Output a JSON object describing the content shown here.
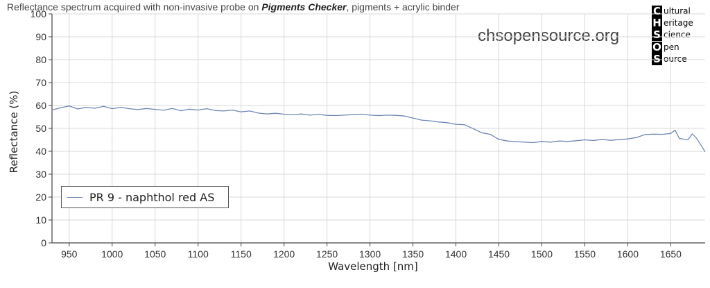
{
  "header": {
    "title_prefix": "Reflectance spectrum acquired with non-invasive probe on ",
    "title_emphasis": "Pigments Checker",
    "title_suffix": ", pigments + acrylic binder",
    "website": "chsopensource.org"
  },
  "logo": {
    "rows": [
      {
        "letter": "C",
        "rest": "ultural"
      },
      {
        "letter": "H",
        "rest": "eritage"
      },
      {
        "letter": "S",
        "rest": "cience"
      },
      {
        "letter": "O",
        "rest": "pen"
      },
      {
        "letter": "S",
        "rest": "ource"
      }
    ]
  },
  "colors": {
    "series": "#6f86b5",
    "grid": "#d9d9d9",
    "axis": "#444444"
  },
  "chart_data": {
    "type": "line",
    "xlabel": "Wavelength [nm]",
    "ylabel": "Reflectance (%)",
    "xlim": [
      930,
      1690
    ],
    "ylim": [
      0,
      100
    ],
    "xticks": [
      950,
      1000,
      1050,
      1100,
      1150,
      1200,
      1250,
      1300,
      1350,
      1400,
      1450,
      1500,
      1550,
      1600,
      1650
    ],
    "yticks": [
      0,
      10,
      20,
      30,
      40,
      50,
      60,
      70,
      80,
      90,
      100
    ],
    "grid": true,
    "legend_position": "lower-left",
    "series": [
      {
        "name": "PR 9 - naphthol red AS",
        "x": [
          930,
          940,
          950,
          960,
          970,
          980,
          990,
          1000,
          1010,
          1020,
          1030,
          1040,
          1050,
          1060,
          1070,
          1080,
          1090,
          1100,
          1110,
          1120,
          1130,
          1140,
          1150,
          1160,
          1170,
          1180,
          1190,
          1200,
          1210,
          1220,
          1230,
          1240,
          1250,
          1260,
          1270,
          1280,
          1290,
          1300,
          1310,
          1320,
          1330,
          1340,
          1350,
          1360,
          1370,
          1380,
          1390,
          1400,
          1410,
          1420,
          1430,
          1440,
          1450,
          1460,
          1470,
          1480,
          1490,
          1500,
          1510,
          1520,
          1530,
          1540,
          1550,
          1560,
          1570,
          1580,
          1590,
          1600,
          1610,
          1620,
          1630,
          1640,
          1650,
          1655,
          1660,
          1670,
          1675,
          1680,
          1690
        ],
        "y": [
          58.0,
          59.0,
          59.8,
          58.5,
          59.2,
          58.8,
          59.6,
          58.6,
          59.2,
          58.6,
          58.2,
          58.7,
          58.3,
          57.9,
          58.7,
          57.7,
          58.4,
          58.0,
          58.6,
          57.8,
          57.6,
          58.0,
          57.2,
          57.6,
          56.7,
          56.3,
          56.6,
          56.2,
          55.9,
          56.3,
          55.8,
          56.1,
          55.7,
          55.6,
          55.8,
          56.0,
          56.2,
          55.8,
          55.6,
          55.8,
          55.7,
          55.4,
          54.5,
          53.6,
          53.3,
          52.8,
          52.5,
          51.8,
          51.6,
          49.9,
          48.1,
          47.4,
          45.2,
          44.5,
          44.2,
          44.0,
          43.8,
          44.3,
          44.0,
          44.5,
          44.3,
          44.6,
          45.0,
          44.7,
          45.2,
          44.8,
          45.1,
          45.4,
          46.0,
          47.3,
          47.5,
          47.4,
          47.8,
          49.2,
          45.6,
          45.0,
          47.6,
          45.7,
          39.8
        ]
      }
    ]
  }
}
